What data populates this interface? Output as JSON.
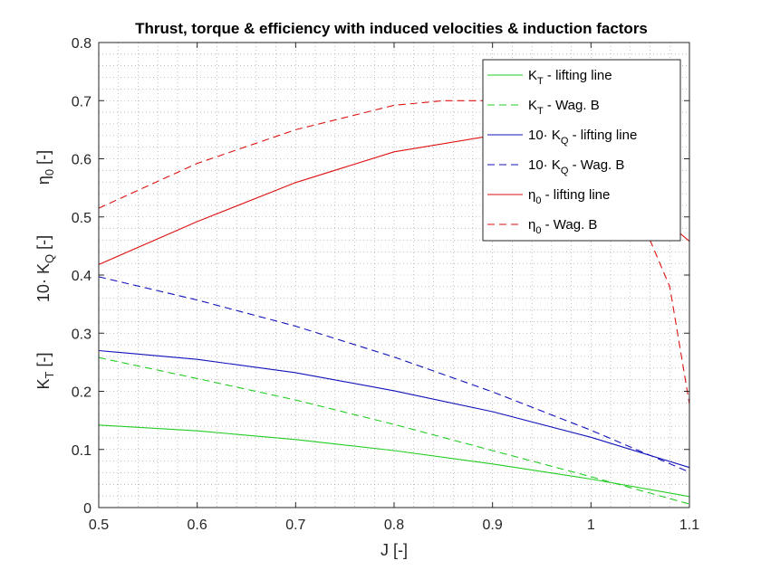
{
  "chart_data": {
    "type": "line",
    "title": "Thrust, torque & efficiency with induced velocities & induction factors",
    "xlabel": "J [-]",
    "ylabel_parts": [
      {
        "base": "K",
        "sub": "T",
        "tail": " [-]"
      },
      {
        "base": "10· K",
        "sub": "Q",
        "tail": " [-]"
      },
      {
        "base": "η",
        "sub": "0",
        "tail": " [-]"
      }
    ],
    "xlim": [
      0.5,
      1.1
    ],
    "ylim": [
      0,
      0.8
    ],
    "xticks": [
      "0.5",
      "0.6",
      "0.7",
      "0.8",
      "0.9",
      "1",
      "1.1"
    ],
    "yticks": [
      "0",
      "0.1",
      "0.2",
      "0.3",
      "0.4",
      "0.5",
      "0.6",
      "0.7",
      "0.8"
    ],
    "grid": "minor-dotted",
    "legend_position": "top-right",
    "colors": {
      "green": "#22cc22",
      "blue": "#1111bb",
      "red": "#dd1111"
    },
    "series": [
      {
        "name_base": "K",
        "name_sub": "T",
        "name_tail": " - lifting line",
        "color": "green",
        "style": "solid",
        "x": [
          0.5,
          0.6,
          0.7,
          0.8,
          0.9,
          1.0,
          1.1
        ],
        "y": [
          0.142,
          0.132,
          0.117,
          0.098,
          0.075,
          0.049,
          0.019
        ]
      },
      {
        "name_base": "K",
        "name_sub": "T",
        "name_tail": " - Wag. B",
        "color": "green",
        "style": "dashed",
        "x": [
          0.5,
          0.6,
          0.7,
          0.8,
          0.9,
          1.0,
          1.1
        ],
        "y": [
          0.258,
          0.222,
          0.185,
          0.143,
          0.098,
          0.053,
          0.006
        ]
      },
      {
        "name_base": "10· K",
        "name_sub": "Q",
        "name_tail": " - lifting line",
        "color": "blue",
        "style": "solid",
        "x": [
          0.5,
          0.6,
          0.7,
          0.8,
          0.9,
          1.0,
          1.1
        ],
        "y": [
          0.27,
          0.255,
          0.232,
          0.201,
          0.165,
          0.121,
          0.069
        ]
      },
      {
        "name_base": "10· K",
        "name_sub": "Q",
        "name_tail": " - Wag. B",
        "color": "blue",
        "style": "dashed",
        "x": [
          0.5,
          0.6,
          0.7,
          0.8,
          0.9,
          1.0,
          1.1
        ],
        "y": [
          0.397,
          0.357,
          0.312,
          0.259,
          0.199,
          0.133,
          0.061
        ]
      },
      {
        "name_base": "η",
        "name_sub": "0",
        "name_tail": " - lifting line",
        "color": "red",
        "style": "solid",
        "x": [
          0.5,
          0.6,
          0.7,
          0.8,
          0.9,
          1.0,
          1.05,
          1.1
        ],
        "y": [
          0.418,
          0.492,
          0.559,
          0.612,
          0.64,
          0.6,
          0.53,
          0.458
        ]
      },
      {
        "name_base": "η",
        "name_sub": "0",
        "name_tail": " - Wag. B",
        "color": "red",
        "style": "dashed",
        "x": [
          0.5,
          0.6,
          0.7,
          0.8,
          0.85,
          0.9,
          0.95,
          1.0,
          1.05,
          1.08,
          1.1
        ],
        "y": [
          0.515,
          0.592,
          0.65,
          0.692,
          0.7,
          0.7,
          0.682,
          0.632,
          0.5,
          0.38,
          0.178
        ]
      }
    ]
  }
}
